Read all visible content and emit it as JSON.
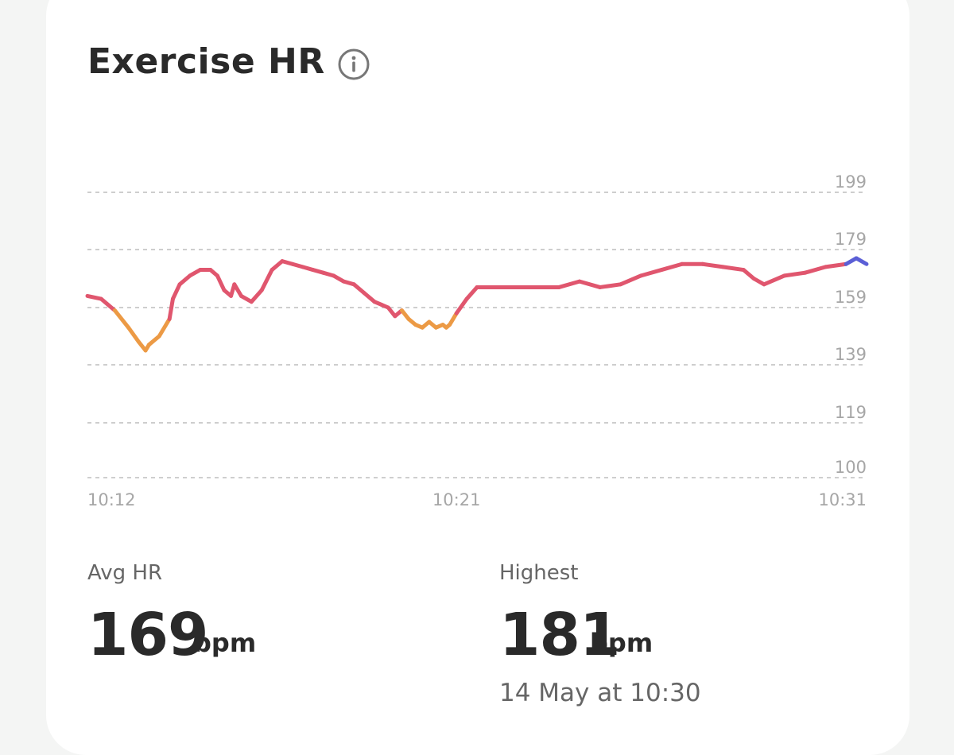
{
  "header": {
    "title": "Exercise HR",
    "info_icon": "info-circle-icon"
  },
  "chart_data": {
    "type": "line",
    "x_ticks": [
      "10:12",
      "10:21",
      "10:31"
    ],
    "y_ticks": [
      199,
      179,
      159,
      139,
      119,
      100
    ],
    "ylim": [
      100,
      199
    ],
    "grid": true,
    "colors": {
      "low_zone": "#ec9a45",
      "mid_zone": "#e0566e",
      "high_zone": "#5b5fd6",
      "grid": "#bdbdbd",
      "tick_text": "#a6a6a6"
    },
    "series": [
      {
        "points": [
          [
            "10:12:00",
            163
          ],
          [
            "10:12:20",
            162
          ],
          [
            "10:12:40",
            158
          ],
          [
            "10:13:00",
            152
          ],
          [
            "10:13:15",
            147
          ],
          [
            "10:13:25",
            144
          ],
          [
            "10:13:30",
            146
          ],
          [
            "10:13:45",
            149
          ],
          [
            "10:14:00",
            155
          ],
          [
            "10:14:05",
            162
          ],
          [
            "10:14:15",
            167
          ],
          [
            "10:14:30",
            170
          ],
          [
            "10:14:45",
            172
          ],
          [
            "10:15:00",
            172
          ],
          [
            "10:15:10",
            170
          ],
          [
            "10:15:20",
            165
          ],
          [
            "10:15:30",
            163
          ],
          [
            "10:15:35",
            167
          ],
          [
            "10:15:45",
            163
          ],
          [
            "10:16:00",
            161
          ],
          [
            "10:16:15",
            165
          ],
          [
            "10:16:30",
            172
          ],
          [
            "10:16:45",
            175
          ],
          [
            "10:17:00",
            174
          ],
          [
            "10:17:15",
            173
          ],
          [
            "10:17:30",
            172
          ],
          [
            "10:17:45",
            171
          ],
          [
            "10:18:00",
            170
          ],
          [
            "10:18:15",
            168
          ],
          [
            "10:18:30",
            167
          ],
          [
            "10:18:45",
            164
          ],
          [
            "10:19:00",
            161
          ],
          [
            "10:19:10",
            160
          ],
          [
            "10:19:20",
            159
          ],
          [
            "10:19:30",
            156
          ],
          [
            "10:19:40",
            158
          ],
          [
            "10:19:50",
            155
          ],
          [
            "10:20:00",
            153
          ],
          [
            "10:20:10",
            152
          ],
          [
            "10:20:20",
            154
          ],
          [
            "10:20:30",
            152
          ],
          [
            "10:20:40",
            153
          ],
          [
            "10:20:45",
            152
          ],
          [
            "10:20:50",
            153
          ],
          [
            "10:21:00",
            157
          ],
          [
            "10:21:15",
            162
          ],
          [
            "10:21:30",
            166
          ],
          [
            "10:22:00",
            166
          ],
          [
            "10:22:30",
            166
          ],
          [
            "10:23:00",
            166
          ],
          [
            "10:23:30",
            166
          ],
          [
            "10:24:00",
            168
          ],
          [
            "10:24:30",
            166
          ],
          [
            "10:25:00",
            167
          ],
          [
            "10:25:30",
            170
          ],
          [
            "10:26:00",
            172
          ],
          [
            "10:26:30",
            174
          ],
          [
            "10:27:00",
            174
          ],
          [
            "10:27:30",
            173
          ],
          [
            "10:28:00",
            172
          ],
          [
            "10:28:15",
            169
          ],
          [
            "10:28:30",
            167
          ],
          [
            "10:29:00",
            170
          ],
          [
            "10:29:30",
            171
          ],
          [
            "10:30:00",
            173
          ],
          [
            "10:30:30",
            174
          ],
          [
            "10:30:45",
            176
          ],
          [
            "10:31:00",
            174
          ]
        ]
      }
    ]
  },
  "stats": [
    {
      "label": "Avg HR",
      "value": "169",
      "unit": "bpm",
      "sub": ""
    },
    {
      "label": "Highest",
      "value": "181",
      "unit": "bpm",
      "sub": "14 May at 10:30"
    }
  ]
}
